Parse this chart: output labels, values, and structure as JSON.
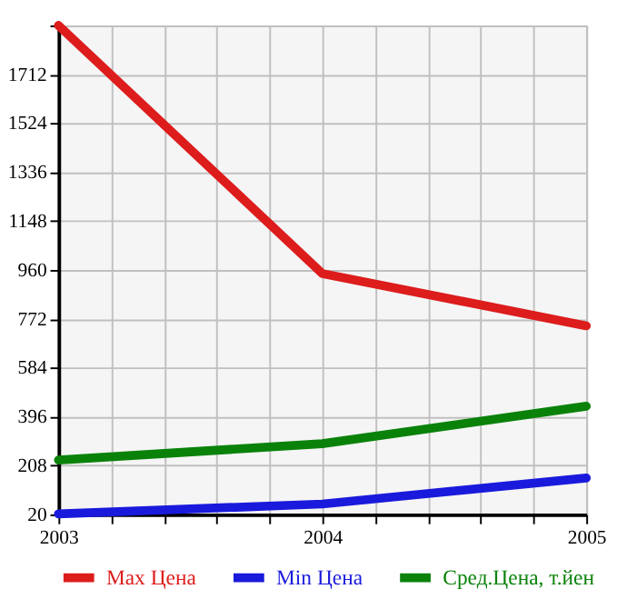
{
  "chart_data": {
    "type": "line",
    "x": [
      2003,
      2004,
      2005
    ],
    "series": [
      {
        "name": "Max Цена",
        "color": "#dd1c1c",
        "values": [
          1900,
          946,
          745
        ]
      },
      {
        "name": "Min Цена",
        "color": "#1a1adc",
        "values": [
          22,
          60,
          160
        ]
      },
      {
        "name": "Сред.Цена, т.йен",
        "color": "#0a820a",
        "values": [
          229,
          292,
          436
        ]
      }
    ],
    "xlim": [
      2003,
      2005
    ],
    "xticks": [
      2003,
      {
        "value": 2003.2,
        "label": null
      },
      {
        "value": 2003.4,
        "label": null
      },
      {
        "value": 2003.6,
        "label": null
      },
      {
        "value": 2003.8,
        "label": null
      },
      2004,
      {
        "value": 2004.2,
        "label": null
      },
      {
        "value": 2004.4,
        "label": null
      },
      {
        "value": 2004.6,
        "label": null
      },
      {
        "value": 2004.8,
        "label": null
      },
      2005
    ],
    "ylim": [
      20,
      1900
    ],
    "yticks": [
      20,
      208,
      396,
      584,
      772,
      960,
      1148,
      1336,
      1524,
      1712,
      {
        "value": 1900,
        "label": null
      }
    ],
    "grid": true,
    "legend": "bottom",
    "marker": "none",
    "line_style": "solid"
  }
}
